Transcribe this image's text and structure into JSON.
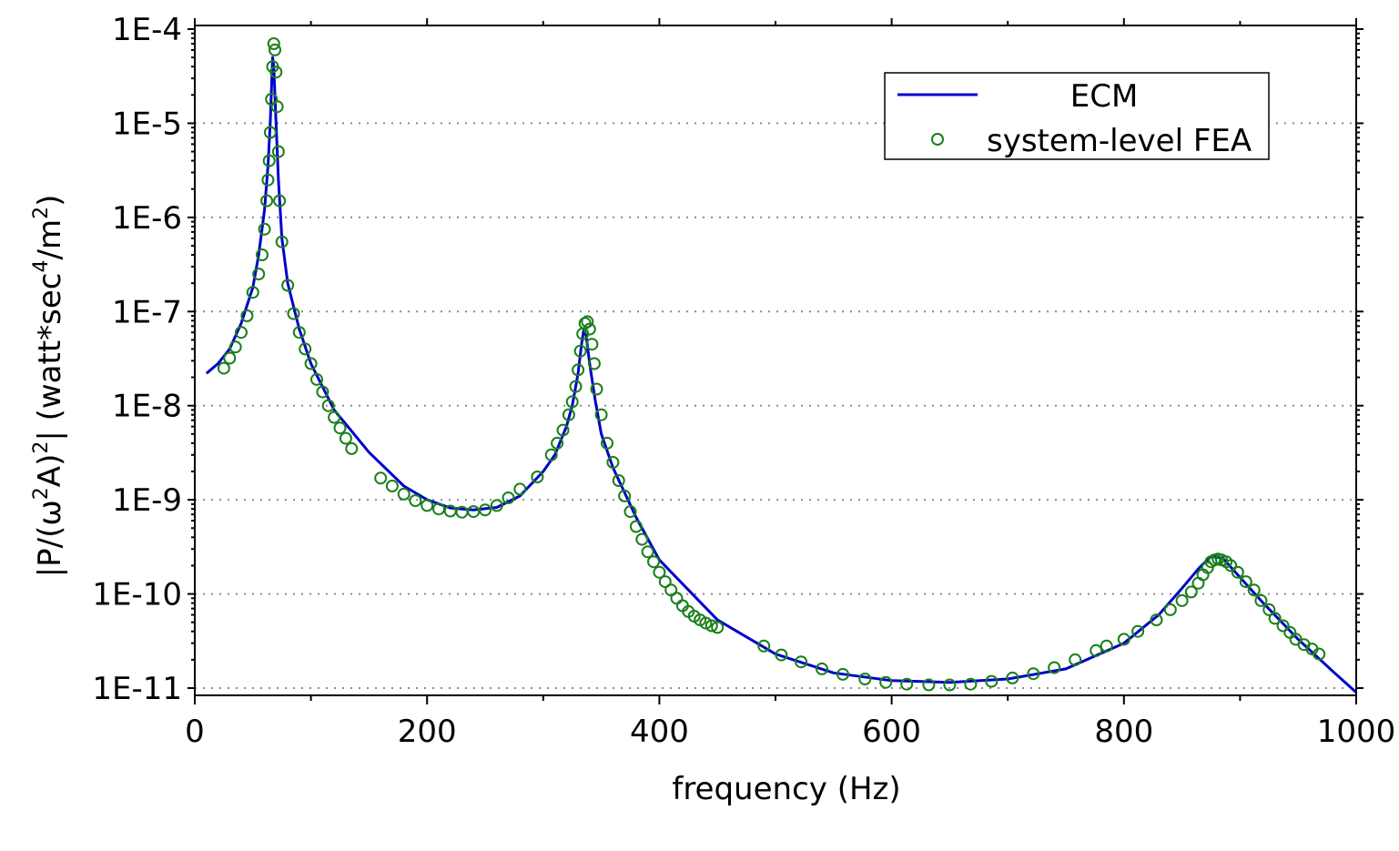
{
  "chart_data": {
    "type": "line",
    "title": "",
    "xlabel": "frequency (Hz)",
    "ylabel": "|P/(ω²A)²|  (watt*sec⁴/m²)",
    "ylabel_parts": {
      "p1": "|P/(ω",
      "sup1": "2",
      "p2": "A)",
      "sup2": "2",
      "p3": "|  (watt*sec",
      "sup3": "4",
      "p4": "/m",
      "sup4": "2",
      "p5": ")"
    },
    "xlim": [
      0,
      1000
    ],
    "ylim": [
      1e-11,
      0.0001
    ],
    "yscale": "log",
    "xticks": [
      0,
      200,
      400,
      600,
      800,
      1000
    ],
    "xtick_labels": [
      "0",
      "200",
      "400",
      "600",
      "800",
      "1000"
    ],
    "yticks": [
      0.0001,
      1e-05,
      1e-06,
      1e-07,
      1e-08,
      1e-09,
      1e-10,
      1e-11
    ],
    "ytick_labels": [
      "1E-4",
      "1E-5",
      "1E-6",
      "1E-7",
      "1E-8",
      "1E-9",
      "1E-10",
      "1E-11"
    ],
    "grid": "horizontal dotted",
    "legend_position": "top-right",
    "series": [
      {
        "name": "ECM",
        "style": "line",
        "color": "#0000cc",
        "x": [
          10,
          20,
          30,
          40,
          50,
          55,
          60,
          63,
          65,
          67,
          68,
          70,
          72,
          75,
          80,
          90,
          100,
          120,
          150,
          180,
          200,
          220,
          240,
          260,
          280,
          300,
          310,
          320,
          325,
          330,
          333,
          335,
          337,
          340,
          345,
          350,
          360,
          380,
          400,
          450,
          500,
          550,
          600,
          650,
          700,
          750,
          800,
          830,
          850,
          865,
          875,
          885,
          900,
          920,
          950,
          980,
          1000
        ],
        "y": [
          2.2e-08,
          2.8e-08,
          4e-08,
          7.5e-08,
          1.8e-07,
          4e-07,
          1.2e-06,
          3.5e-06,
          1e-05,
          5e-05,
          4e-05,
          1e-05,
          2.5e-06,
          6e-07,
          2e-07,
          6.5e-08,
          2.8e-08,
          9e-09,
          3.2e-09,
          1.4e-09,
          1e-09,
          8.2e-10,
          7.8e-10,
          8.3e-10,
          1.1e-09,
          2e-09,
          3e-09,
          6e-09,
          1e-08,
          2.2e-08,
          4.5e-08,
          6.5e-08,
          5.5e-08,
          2.8e-08,
          1.1e-08,
          5e-09,
          2.2e-09,
          6.5e-10,
          2.3e-10,
          5.3e-11,
          2.3e-11,
          1.45e-11,
          1.2e-11,
          1.15e-11,
          1.25e-11,
          1.6e-11,
          3e-11,
          6e-11,
          1.15e-10,
          1.9e-10,
          2.5e-10,
          2.4e-10,
          1.5e-10,
          8e-11,
          3.3e-11,
          1.5e-11,
          9e-12
        ]
      },
      {
        "name": "system-level FEA",
        "style": "markers",
        "color": "#1a7f1a",
        "x": [
          25,
          30,
          35,
          40,
          45,
          50,
          55,
          58,
          60,
          62,
          63,
          64,
          65,
          66,
          67,
          68,
          69,
          70,
          71,
          72,
          73,
          75,
          80,
          85,
          90,
          95,
          100,
          105,
          110,
          115,
          120,
          125,
          130,
          135,
          160,
          170,
          180,
          190,
          200,
          210,
          220,
          230,
          240,
          250,
          260,
          270,
          280,
          295,
          307,
          312,
          317,
          322,
          325,
          328,
          330,
          332,
          334,
          336,
          338,
          340,
          342,
          344,
          346,
          350,
          355,
          360,
          365,
          370,
          375,
          380,
          385,
          390,
          395,
          400,
          405,
          410,
          415,
          420,
          425,
          430,
          435,
          440,
          445,
          450,
          490,
          505,
          522,
          540,
          558,
          577,
          595,
          613,
          632,
          650,
          668,
          686,
          704,
          722,
          740,
          758,
          776,
          785,
          800,
          812,
          828,
          840,
          850,
          858,
          864,
          868,
          872,
          875,
          878,
          881,
          884,
          888,
          892,
          898,
          905,
          912,
          918,
          925,
          930,
          937,
          943,
          948,
          955,
          962,
          968
        ],
        "y": [
          2.5e-08,
          3.2e-08,
          4.2e-08,
          6e-08,
          9e-08,
          1.6e-07,
          2.5e-07,
          4e-07,
          7.5e-07,
          1.5e-06,
          2.5e-06,
          4e-06,
          8e-06,
          1.8e-05,
          4e-05,
          7e-05,
          6e-05,
          3.5e-05,
          1.5e-05,
          5e-06,
          1.5e-06,
          5.5e-07,
          1.9e-07,
          9.5e-08,
          6e-08,
          4e-08,
          2.8e-08,
          1.9e-08,
          1.4e-08,
          1e-08,
          7.5e-09,
          5.8e-09,
          4.5e-09,
          3.5e-09,
          1.7e-09,
          1.4e-09,
          1.15e-09,
          9.8e-10,
          8.7e-10,
          8e-10,
          7.6e-10,
          7.4e-10,
          7.5e-10,
          7.8e-10,
          8.7e-10,
          1.05e-09,
          1.3e-09,
          1.75e-09,
          3e-09,
          4e-09,
          5.5e-09,
          8e-09,
          1.1e-08,
          1.6e-08,
          2.4e-08,
          3.8e-08,
          5.8e-08,
          7.5e-08,
          7.8e-08,
          6.5e-08,
          4.5e-08,
          2.8e-08,
          1.5e-08,
          8e-09,
          4e-09,
          2.5e-09,
          1.6e-09,
          1.1e-09,
          7.5e-10,
          5.2e-10,
          3.8e-10,
          2.8e-10,
          2.2e-10,
          1.7e-10,
          1.35e-10,
          1.1e-10,
          9e-11,
          7.5e-11,
          6.5e-11,
          5.8e-11,
          5.3e-11,
          4.9e-11,
          4.6e-11,
          4.4e-11,
          2.8e-11,
          2.25e-11,
          1.9e-11,
          1.6e-11,
          1.4e-11,
          1.25e-11,
          1.15e-11,
          1.1e-11,
          1.08e-11,
          1.08e-11,
          1.1e-11,
          1.18e-11,
          1.28e-11,
          1.42e-11,
          1.65e-11,
          2e-11,
          2.5e-11,
          2.8e-11,
          3.3e-11,
          4e-11,
          5.3e-11,
          6.8e-11,
          8.5e-11,
          1.05e-10,
          1.3e-10,
          1.6e-10,
          1.9e-10,
          2.2e-10,
          2.3e-10,
          2.35e-10,
          2.3e-10,
          2.2e-10,
          2e-10,
          1.7e-10,
          1.35e-10,
          1.1e-10,
          8.5e-11,
          6.8e-11,
          5.5e-11,
          4.6e-11,
          3.9e-11,
          3.3e-11,
          2.9e-11,
          2.6e-11,
          2.3e-11
        ]
      }
    ]
  }
}
